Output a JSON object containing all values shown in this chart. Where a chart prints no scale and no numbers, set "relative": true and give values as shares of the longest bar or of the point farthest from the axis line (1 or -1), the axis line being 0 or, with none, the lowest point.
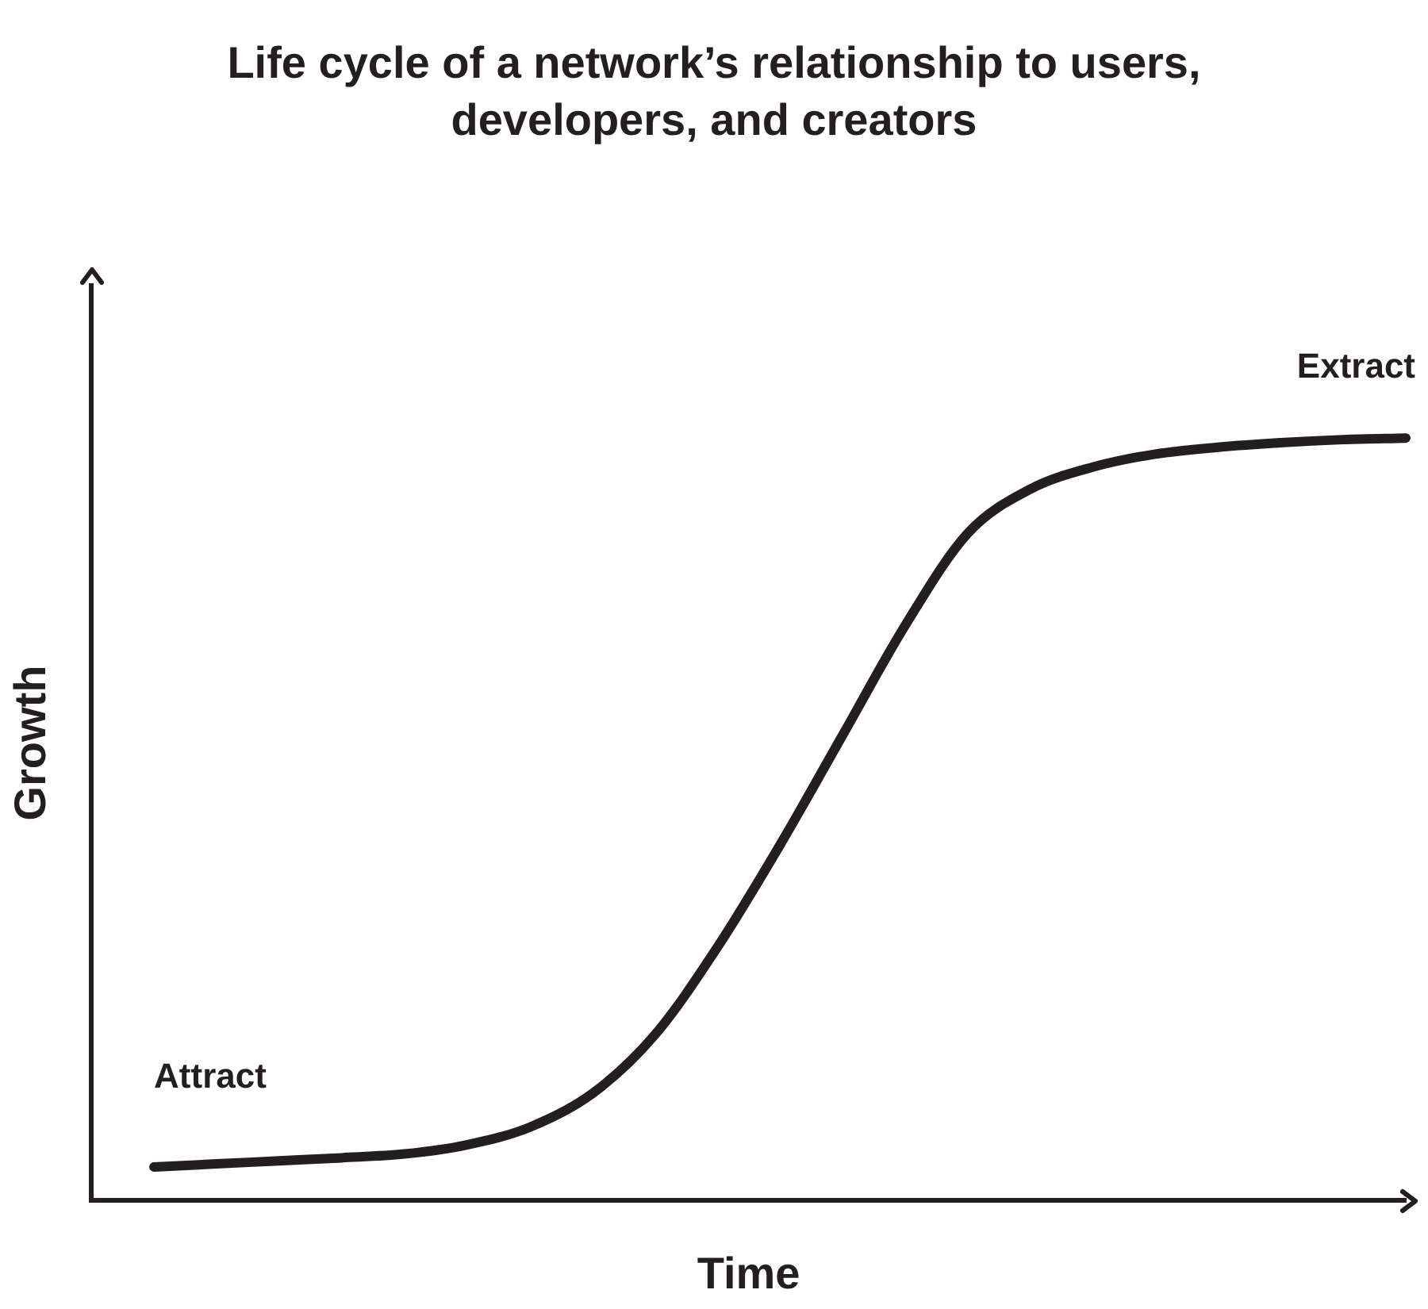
{
  "chart_data": {
    "type": "line",
    "title": "Life cycle of a network’s relationship to users, developers, and creators",
    "xlabel": "Time",
    "ylabel": "Growth",
    "relative": true,
    "legend": false,
    "grid": false,
    "marker": "none",
    "line_style": "solid",
    "categories": [
      null,
      null,
      null,
      null,
      null,
      null,
      null,
      null,
      null,
      null,
      null,
      null,
      null,
      null,
      null,
      null,
      null,
      null,
      null,
      null,
      null,
      null
    ],
    "series": [
      {
        "color": "#231f20",
        "values": [
          null,
          0.044,
          0.048,
          0.052,
          0.056,
          0.061,
          0.073,
          0.096,
          0.14,
          0.217,
          0.332,
          0.466,
          0.61,
          0.754,
          0.875,
          0.933,
          0.962,
          0.979,
          0.988,
          0.994,
          0.998,
          1
        ]
      }
    ],
    "annotations": [
      "Attract",
      "Extract"
    ]
  }
}
